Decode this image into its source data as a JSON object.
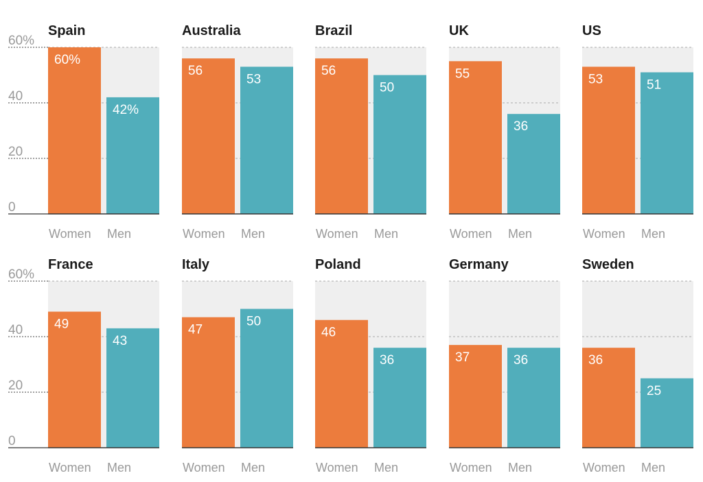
{
  "chart_data": {
    "type": "bar",
    "categories": [
      "Women",
      "Men"
    ],
    "ylim": [
      0,
      60
    ],
    "yticks": [
      {
        "value": 0,
        "label": "0"
      },
      {
        "value": 20,
        "label": "20"
      },
      {
        "value": 40,
        "label": "40"
      },
      {
        "value": 60,
        "label": "60%"
      }
    ],
    "grid": true,
    "colors": {
      "Women": "#ec7c3d",
      "Men": "#51aebb",
      "background": "#efefef",
      "grid": "#aaaaaa",
      "axis": "#333333"
    },
    "panels": [
      {
        "title": "Spain",
        "values": [
          60,
          42
        ],
        "labels": [
          "60%",
          "42%"
        ]
      },
      {
        "title": "Australia",
        "values": [
          56,
          53
        ],
        "labels": [
          "56",
          "53"
        ]
      },
      {
        "title": "Brazil",
        "values": [
          56,
          50
        ],
        "labels": [
          "56",
          "50"
        ]
      },
      {
        "title": "UK",
        "values": [
          55,
          36
        ],
        "labels": [
          "55",
          "36"
        ]
      },
      {
        "title": "US",
        "values": [
          53,
          51
        ],
        "labels": [
          "53",
          "51"
        ]
      },
      {
        "title": "France",
        "values": [
          49,
          43
        ],
        "labels": [
          "49",
          "43"
        ]
      },
      {
        "title": "Italy",
        "values": [
          47,
          50
        ],
        "labels": [
          "47",
          "50"
        ]
      },
      {
        "title": "Poland",
        "values": [
          46,
          36
        ],
        "labels": [
          "46",
          "36"
        ]
      },
      {
        "title": "Germany",
        "values": [
          37,
          36
        ],
        "labels": [
          "37",
          "36"
        ]
      },
      {
        "title": "Sweden",
        "values": [
          36,
          25
        ],
        "labels": [
          "36",
          "25"
        ]
      }
    ]
  }
}
